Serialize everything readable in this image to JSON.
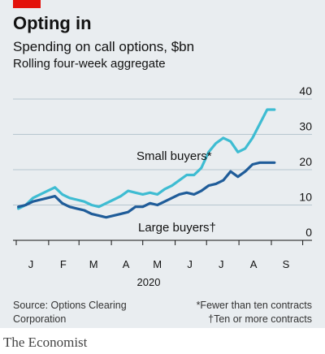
{
  "header": {
    "title": "Opting in",
    "subtitle": "Spending on call options, $bn",
    "subsubtitle": "Rolling four-week aggregate"
  },
  "colors": {
    "background": "#e9edf0",
    "accent": "#e3120b",
    "small_buyers": "#3ebcd2",
    "large_buyers": "#1f5c99",
    "grid": "#b7c6cf"
  },
  "chart_data": {
    "type": "line",
    "title": "Spending on call options, $bn",
    "ylabel": "",
    "xlabel": "2020",
    "ylim": [
      0,
      40
    ],
    "yticks": [
      "40",
      "30",
      "20",
      "10",
      "0"
    ],
    "xticks": [
      "J",
      "F",
      "M",
      "A",
      "M",
      "J",
      "J",
      "A",
      "S"
    ],
    "year_label": "2020",
    "x": [
      "2020-01-03",
      "2020-01-10",
      "2020-01-17",
      "2020-01-24",
      "2020-01-31",
      "2020-02-07",
      "2020-02-14",
      "2020-02-21",
      "2020-02-28",
      "2020-03-06",
      "2020-03-13",
      "2020-03-20",
      "2020-03-27",
      "2020-04-03",
      "2020-04-10",
      "2020-04-17",
      "2020-04-24",
      "2020-05-01",
      "2020-05-08",
      "2020-05-15",
      "2020-05-22",
      "2020-05-29",
      "2020-06-05",
      "2020-06-12",
      "2020-06-19",
      "2020-06-26",
      "2020-07-03",
      "2020-07-10",
      "2020-07-17",
      "2020-07-24",
      "2020-07-31",
      "2020-08-07",
      "2020-08-14",
      "2020-08-21",
      "2020-08-28",
      "2020-09-04"
    ],
    "series": [
      {
        "name": "Small buyers*",
        "values": [
          9.0,
          10.0,
          12.0,
          13.0,
          14.0,
          15.0,
          13.0,
          12.0,
          11.5,
          11.0,
          10.0,
          9.5,
          10.5,
          11.5,
          12.5,
          14.0,
          13.5,
          13.0,
          13.5,
          13.0,
          14.5,
          15.5,
          17.0,
          18.5,
          18.5,
          20.5,
          25.0,
          27.5,
          29.0,
          28.0,
          25.0,
          26.0,
          29.0,
          33.0,
          37.0,
          37.0
        ]
      },
      {
        "name": "Large buyers†",
        "values": [
          9.5,
          10.0,
          11.0,
          11.5,
          12.0,
          12.5,
          10.5,
          9.5,
          9.0,
          8.5,
          7.5,
          7.0,
          6.5,
          7.0,
          7.5,
          8.0,
          9.5,
          9.5,
          10.5,
          10.0,
          11.0,
          12.0,
          13.0,
          13.5,
          13.0,
          14.0,
          15.5,
          16.0,
          17.0,
          19.5,
          18.0,
          19.5,
          21.5,
          22.0,
          22.0,
          22.0
        ]
      }
    ]
  },
  "footer": {
    "source": "Source: Options Clearing Corporation",
    "note1": "*Fewer than ten contracts",
    "note2": "†Ten or more contracts",
    "brand": "The Economist"
  }
}
